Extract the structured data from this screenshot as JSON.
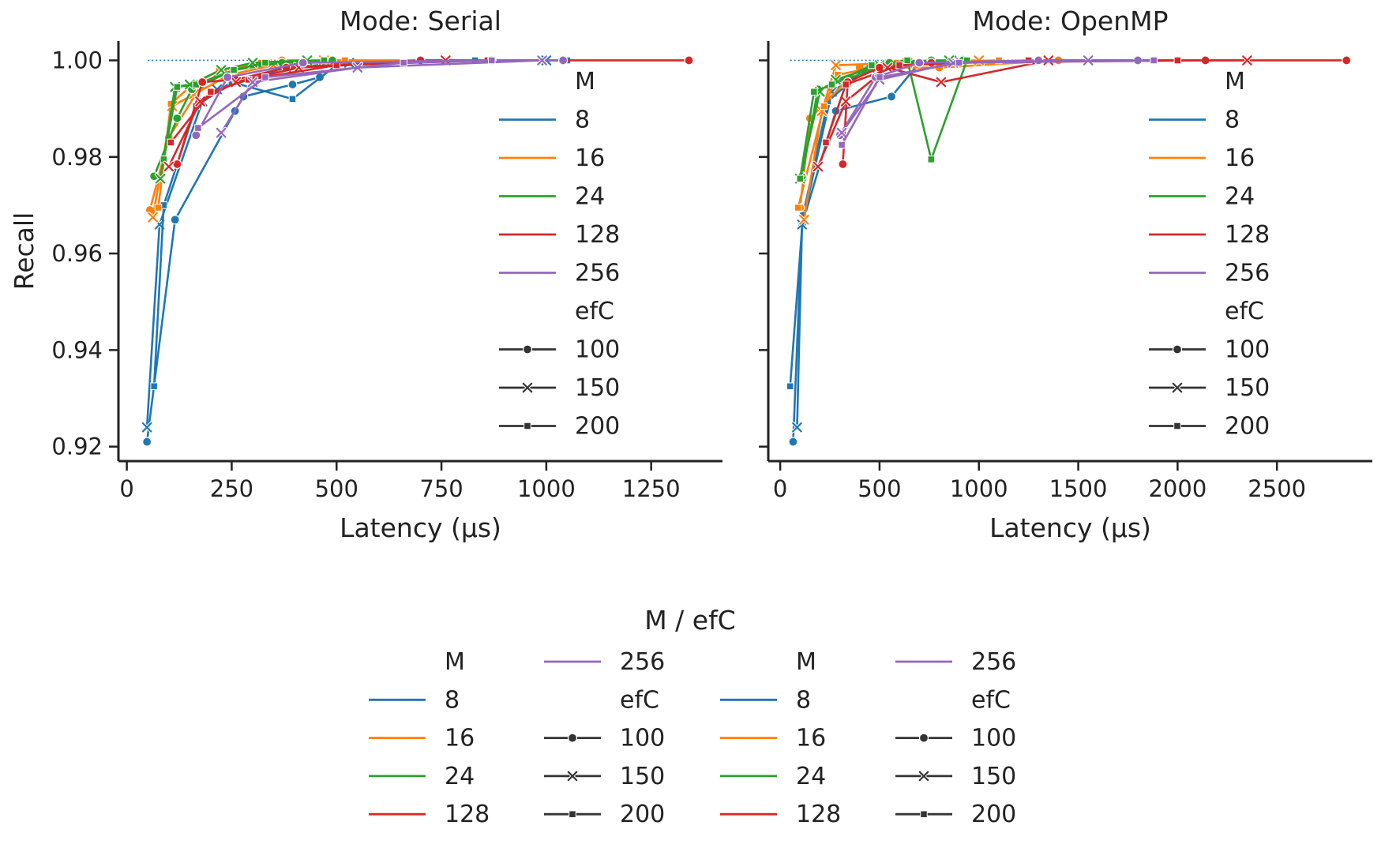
{
  "chart_data": [
    {
      "type": "line",
      "title": "Mode: Serial",
      "xlabel": "Latency (µs)",
      "ylabel": "Recall",
      "xlim": [
        -20,
        1420
      ],
      "ylim": [
        0.917,
        1.004
      ],
      "xticks": [
        0,
        250,
        500,
        750,
        1000,
        1250
      ],
      "yticks": [
        0.92,
        0.94,
        0.96,
        0.98,
        1.0
      ],
      "xtick_labels": [
        "0",
        "250",
        "500",
        "750",
        "1000",
        "1250"
      ],
      "ytick_labels": [
        "0.92",
        "0.94",
        "0.96",
        "0.98",
        "1.00"
      ],
      "grid": false,
      "legend_position": "inside-right",
      "reference_line": {
        "style": "dotted",
        "color": "#1f77b4",
        "y": 1.0,
        "x": [
          50,
          1340
        ]
      },
      "series": [
        {
          "name": "8",
          "color": "#1f77b4",
          "marker": "circle",
          "x": [
            48,
            115,
            258,
            278,
            395,
            460
          ],
          "y": [
            0.921,
            0.967,
            0.9895,
            0.9925,
            0.995,
            0.9965
          ]
        },
        {
          "name": "8",
          "color": "#1f77b4",
          "marker": "x",
          "x": [
            48,
            78,
            180,
            215,
            380,
            530,
            760,
            1000
          ],
          "y": [
            0.924,
            0.966,
            0.9915,
            0.994,
            0.9985,
            0.9995,
            1.0,
            1.0
          ]
        },
        {
          "name": "8",
          "color": "#1f77b4",
          "marker": "square",
          "x": [
            65,
            88,
            165,
            250,
            395,
            500,
            830,
            1050
          ],
          "y": [
            0.9325,
            0.97,
            0.9905,
            0.9955,
            0.992,
            0.999,
            1.0,
            1.0
          ]
        },
        {
          "name": "16",
          "color": "#ff7f0e",
          "marker": "circle",
          "x": [
            55,
            100,
            175,
            230,
            370,
            480,
            870
          ],
          "y": [
            0.969,
            0.984,
            0.9945,
            0.998,
            1.0,
            1.0,
            1.0
          ]
        },
        {
          "name": "16",
          "color": "#ff7f0e",
          "marker": "x",
          "x": [
            62,
            108,
            160,
            245,
            350,
            470
          ],
          "y": [
            0.9675,
            0.9905,
            0.993,
            0.997,
            0.999,
            1.0
          ]
        },
        {
          "name": "16",
          "color": "#ff7f0e",
          "marker": "square",
          "x": [
            75,
            105,
            150,
            220,
            320,
            520
          ],
          "y": [
            0.9695,
            0.991,
            0.9945,
            0.998,
            0.9995,
            1.0
          ]
        },
        {
          "name": "24",
          "color": "#2ca02c",
          "marker": "circle",
          "x": [
            65,
            120,
            155,
            255,
            370,
            490
          ],
          "y": [
            0.976,
            0.988,
            0.994,
            0.998,
            0.9995,
            1.0
          ]
        },
        {
          "name": "24",
          "color": "#2ca02c",
          "marker": "x",
          "x": [
            80,
            115,
            150,
            225,
            300,
            430
          ],
          "y": [
            0.9755,
            0.9945,
            0.995,
            0.998,
            0.9995,
            1.0
          ]
        },
        {
          "name": "24",
          "color": "#2ca02c",
          "marker": "square",
          "x": [
            88,
            120,
            165,
            255,
            330,
            470
          ],
          "y": [
            0.9795,
            0.9945,
            0.995,
            0.998,
            0.9995,
            1.0
          ]
        },
        {
          "name": "128",
          "color": "#d62728",
          "marker": "circle",
          "x": [
            120,
            180,
            260,
            380,
            700,
            1340
          ],
          "y": [
            0.9785,
            0.9955,
            0.996,
            0.9985,
            1.0,
            1.0
          ]
        },
        {
          "name": "128",
          "color": "#d62728",
          "marker": "x",
          "x": [
            100,
            175,
            260,
            410,
            760
          ],
          "y": [
            0.978,
            0.9915,
            0.9955,
            0.9985,
            1.0
          ]
        },
        {
          "name": "128",
          "color": "#d62728",
          "marker": "square",
          "x": [
            105,
            200,
            290,
            500,
            860
          ],
          "y": [
            0.983,
            0.9935,
            0.996,
            0.999,
            1.0
          ]
        },
        {
          "name": "256",
          "color": "#9467bd",
          "marker": "circle",
          "x": [
            165,
            240,
            420,
            870,
            1040
          ],
          "y": [
            0.9845,
            0.9965,
            0.9995,
            1.0,
            1.0
          ]
        },
        {
          "name": "256",
          "color": "#9467bd",
          "marker": "x",
          "x": [
            225,
            300,
            550,
            990
          ],
          "y": [
            0.985,
            0.9955,
            0.9985,
            1.0
          ]
        },
        {
          "name": "256",
          "color": "#9467bd",
          "marker": "square",
          "x": [
            170,
            330,
            660,
            870
          ],
          "y": [
            0.986,
            0.9965,
            0.9995,
            1.0
          ]
        }
      ]
    },
    {
      "type": "line",
      "title": "Mode: OpenMP",
      "xlabel": "Latency (µs)",
      "ylabel": "",
      "xlim": [
        -60,
        2980
      ],
      "ylim": [
        0.917,
        1.004
      ],
      "xticks": [
        0,
        500,
        1000,
        1500,
        2000,
        2500
      ],
      "yticks": [
        0.92,
        0.94,
        0.96,
        0.98,
        1.0
      ],
      "xtick_labels": [
        "0",
        "500",
        "1000",
        "1500",
        "2000",
        "2500"
      ],
      "ytick_labels": [
        "",
        "",
        "",
        "",
        ""
      ],
      "grid": false,
      "legend_position": "inside-right",
      "reference_line": {
        "style": "dotted",
        "color": "#1f77b4",
        "y": 1.0,
        "x": [
          50,
          1300
        ]
      },
      "series": [
        {
          "name": "8",
          "color": "#1f77b4",
          "marker": "circle",
          "x": [
            65,
            110,
            280,
            560,
            700
          ],
          "y": [
            0.921,
            0.966,
            0.9895,
            0.9925,
            0.9995
          ]
        },
        {
          "name": "8",
          "color": "#1f77b4",
          "marker": "x",
          "x": [
            85,
            110,
            260,
            450,
            900
          ],
          "y": [
            0.924,
            0.966,
            0.9935,
            0.9985,
            1.0
          ]
        },
        {
          "name": "8",
          "color": "#1f77b4",
          "marker": "square",
          "x": [
            50,
            115,
            240,
            420,
            760
          ],
          "y": [
            0.9325,
            0.968,
            0.9915,
            0.998,
            1.0
          ]
        },
        {
          "name": "16",
          "color": "#ff7f0e",
          "marker": "circle",
          "x": [
            100,
            150,
            400,
            800,
            1400
          ],
          "y": [
            0.9695,
            0.988,
            0.9985,
            0.9985,
            1.0
          ]
        },
        {
          "name": "16",
          "color": "#ff7f0e",
          "marker": "x",
          "x": [
            120,
            210,
            280,
            640,
            1000
          ],
          "y": [
            0.967,
            0.9895,
            0.999,
            0.9995,
            1.0
          ]
        },
        {
          "name": "16",
          "color": "#ff7f0e",
          "marker": "square",
          "x": [
            90,
            220,
            290,
            580,
            1100
          ],
          "y": [
            0.9695,
            0.9905,
            0.997,
            0.9995,
            1.0
          ]
        },
        {
          "name": "24",
          "color": "#2ca02c",
          "marker": "circle",
          "x": [
            110,
            190,
            330,
            550,
            760,
            920
          ],
          "y": [
            0.976,
            0.994,
            0.996,
            0.9995,
            1.0,
            1.0
          ]
        },
        {
          "name": "24",
          "color": "#2ca02c",
          "marker": "x",
          "x": [
            100,
            200,
            280,
            500,
            850
          ],
          "y": [
            0.9755,
            0.9935,
            0.996,
            0.999,
            1.0
          ]
        },
        {
          "name": "24",
          "color": "#2ca02c",
          "marker": "square",
          "x": [
            100,
            170,
            260,
            460,
            640,
            760,
            940
          ],
          "y": [
            0.9755,
            0.9935,
            0.995,
            0.999,
            1.0,
            0.9795,
            1.0
          ]
        },
        {
          "name": "128",
          "color": "#d62728",
          "marker": "circle",
          "x": [
            315,
            340,
            500,
            760,
            2140,
            2850
          ],
          "y": [
            0.9785,
            0.9955,
            0.9985,
            0.9995,
            1.0,
            1.0
          ]
        },
        {
          "name": "128",
          "color": "#d62728",
          "marker": "x",
          "x": [
            190,
            330,
            540,
            810,
            1350,
            2350
          ],
          "y": [
            0.978,
            0.9915,
            0.9985,
            0.9955,
            1.0,
            1.0
          ]
        },
        {
          "name": "128",
          "color": "#d62728",
          "marker": "square",
          "x": [
            230,
            330,
            600,
            1250,
            2000
          ],
          "y": [
            0.983,
            0.995,
            0.999,
            1.0,
            1.0
          ]
        },
        {
          "name": "256",
          "color": "#9467bd",
          "marker": "circle",
          "x": [
            300,
            480,
            700,
            1300,
            1800
          ],
          "y": [
            0.9845,
            0.9965,
            0.9995,
            1.0,
            1.0
          ]
        },
        {
          "name": "256",
          "color": "#9467bd",
          "marker": "x",
          "x": [
            310,
            500,
            870,
            1550
          ],
          "y": [
            0.985,
            0.996,
            0.9995,
            1.0
          ]
        },
        {
          "name": "256",
          "color": "#9467bd",
          "marker": "square",
          "x": [
            310,
            500,
            900,
            1880
          ],
          "y": [
            0.9825,
            0.9965,
            0.9995,
            1.0
          ]
        }
      ]
    }
  ],
  "legend_inside": {
    "m_title": "M",
    "efc_title": "efC",
    "m_entries": [
      {
        "label": "8",
        "color": "#1f77b4"
      },
      {
        "label": "16",
        "color": "#ff7f0e"
      },
      {
        "label": "24",
        "color": "#2ca02c"
      },
      {
        "label": "128",
        "color": "#d62728"
      },
      {
        "label": "256",
        "color": "#9467bd"
      }
    ],
    "efc_entries": [
      {
        "label": "100",
        "marker": "circle"
      },
      {
        "label": "150",
        "marker": "x"
      },
      {
        "label": "200",
        "marker": "square"
      }
    ]
  },
  "bottom_legend": {
    "title": "M / efC",
    "groups": 2
  },
  "colors": {
    "axis": "#222222",
    "marker_edge": "#ffffff",
    "legend_line": "#333333"
  }
}
